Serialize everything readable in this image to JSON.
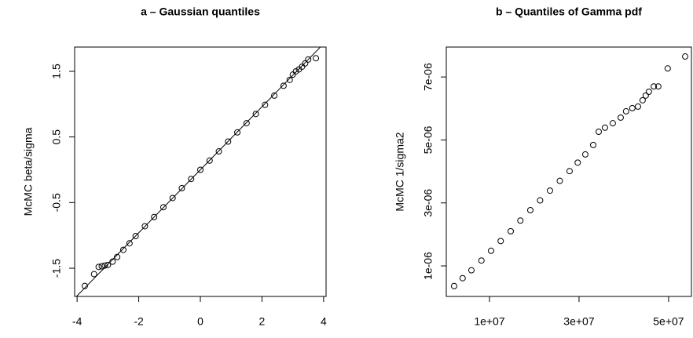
{
  "chart_data": [
    {
      "type": "scatter",
      "title": "a – Gaussian quantiles",
      "y_label": "McMC beta/sigma",
      "x": [
        -3.75,
        -3.45,
        -3.3,
        -3.2,
        -3.1,
        -3.0,
        -2.85,
        -2.7,
        -2.5,
        -2.3,
        -2.1,
        -1.8,
        -1.5,
        -1.2,
        -0.9,
        -0.6,
        -0.3,
        0,
        0.3,
        0.6,
        0.9,
        1.2,
        1.5,
        1.8,
        2.1,
        2.4,
        2.7,
        2.9,
        3.0,
        3.1,
        3.2,
        3.3,
        3.4,
        3.5,
        3.75
      ],
      "values": [
        -1.77,
        -1.59,
        -1.48,
        -1.47,
        -1.46,
        -1.45,
        -1.4,
        -1.33,
        -1.22,
        -1.12,
        -1.01,
        -0.86,
        -0.72,
        -0.57,
        -0.43,
        -0.28,
        -0.14,
        0,
        0.14,
        0.28,
        0.43,
        0.57,
        0.71,
        0.85,
        0.99,
        1.13,
        1.28,
        1.37,
        1.45,
        1.5,
        1.53,
        1.57,
        1.62,
        1.68,
        1.7
      ],
      "xlim": [
        -4.08,
        4.08
      ],
      "xticks": [
        -4,
        -2,
        0,
        2,
        4
      ],
      "ylim": [
        -1.93,
        1.87
      ],
      "yticks": [
        -1.5,
        -0.5,
        0.5,
        1.5
      ],
      "abline": {
        "intercept": 0,
        "slope": 0.48
      },
      "color": "#000000"
    },
    {
      "type": "scatter",
      "title": "b – Quantiles of Gamma pdf",
      "y_label": "McMC 1/sigma2",
      "x": [
        2100000.0,
        4000000.0,
        5960000.0,
        8200000.0,
        10350000.0,
        12500000.0,
        14740000.0,
        16900000.0,
        19120000.0,
        21300000.0,
        23510000.0,
        25700000.0,
        27890000.0,
        29700000.0,
        31400000.0,
        33160000.0,
        34390000.0,
        35790000.0,
        37540000.0,
        39300000.0,
        40500000.0,
        41900000.0,
        43160000.0,
        44200000.0,
        44900000.0,
        45600000.0,
        46700000.0,
        47700000.0,
        49800000.0,
        53700000.0
      ],
      "values": [
        3.6e-07,
        6.1e-07,
        8.6e-07,
        1.17e-06,
        1.48e-06,
        1.79e-06,
        2.1e-06,
        2.44e-06,
        2.77e-06,
        3.08e-06,
        3.39e-06,
        3.7e-06,
        4.01e-06,
        4.28e-06,
        4.54e-06,
        4.84e-06,
        5.26e-06,
        5.39e-06,
        5.53e-06,
        5.71e-06,
        5.91e-06,
        6.01e-06,
        6.06e-06,
        6.26e-06,
        6.41e-06,
        6.53e-06,
        6.7e-06,
        6.7e-06,
        7.27e-06,
        7.65e-06
      ],
      "xlim": [
        350000.0,
        55100000.0
      ],
      "xticks": [
        {
          "value": 10000000.0,
          "label": "1e+07"
        },
        {
          "value": 30000000.0,
          "label": "3e+07"
        },
        {
          "value": 50000000.0,
          "label": "5e+07"
        }
      ],
      "ylim": [
        3e-08,
        7.95e-06
      ],
      "yticks": [
        {
          "value": 1e-06,
          "label": "1e-06"
        },
        {
          "value": 3e-06,
          "label": "3e-06"
        },
        {
          "value": 5e-06,
          "label": "5e-06"
        },
        {
          "value": 7e-06,
          "label": "7e-06"
        }
      ],
      "color": "#000000"
    }
  ]
}
